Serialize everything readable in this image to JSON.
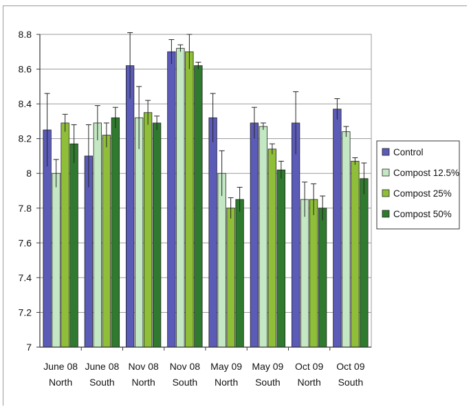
{
  "chart_data": {
    "type": "bar",
    "title": "",
    "xlabel": "",
    "ylabel": "",
    "ylim": [
      7,
      8.8
    ],
    "yticks": [
      7,
      7.2,
      7.4,
      7.6,
      7.8,
      8,
      8.2,
      8.4,
      8.6,
      8.8
    ],
    "ytick_labels": [
      "7",
      "7.2",
      "7.4",
      "7.6",
      "7.8",
      "8",
      "8.2",
      "8.4",
      "8.6",
      "8.8"
    ],
    "grid": true,
    "legend_position": "right",
    "categories": [
      {
        "line1": "June 08",
        "line2": "North"
      },
      {
        "line1": "June 08",
        "line2": "South"
      },
      {
        "line1": "Nov 08",
        "line2": "North"
      },
      {
        "line1": "Nov 08",
        "line2": "South"
      },
      {
        "line1": "May 09",
        "line2": "North"
      },
      {
        "line1": "May 09",
        "line2": "South"
      },
      {
        "line1": "Oct 09",
        "line2": "North"
      },
      {
        "line1": "Oct 09",
        "line2": "South"
      }
    ],
    "series": [
      {
        "name": "Control",
        "color": "#5b5bb8",
        "values": [
          8.25,
          8.1,
          8.62,
          8.7,
          8.32,
          8.29,
          8.29,
          8.37
        ],
        "errors": [
          0.21,
          0.18,
          0.19,
          0.07,
          0.14,
          0.09,
          0.18,
          0.06
        ]
      },
      {
        "name": "Compost 12.5%",
        "color": "#c4e8c4",
        "values": [
          8.0,
          8.29,
          8.32,
          8.72,
          8.0,
          8.27,
          7.85,
          8.24
        ],
        "errors": [
          0.08,
          0.1,
          0.18,
          0.02,
          0.13,
          0.02,
          0.1,
          0.03
        ]
      },
      {
        "name": "Compost 25%",
        "color": "#8fbe38",
        "values": [
          8.29,
          8.22,
          8.35,
          8.7,
          7.8,
          8.14,
          7.85,
          8.07
        ],
        "errors": [
          0.05,
          0.07,
          0.07,
          0.1,
          0.06,
          0.03,
          0.09,
          0.02
        ]
      },
      {
        "name": "Compost 50%",
        "color": "#2f7a2f",
        "values": [
          8.17,
          8.32,
          8.29,
          8.62,
          7.85,
          8.02,
          7.8,
          7.97
        ],
        "errors": [
          0.11,
          0.06,
          0.04,
          0.02,
          0.07,
          0.05,
          0.07,
          0.09
        ]
      }
    ]
  }
}
